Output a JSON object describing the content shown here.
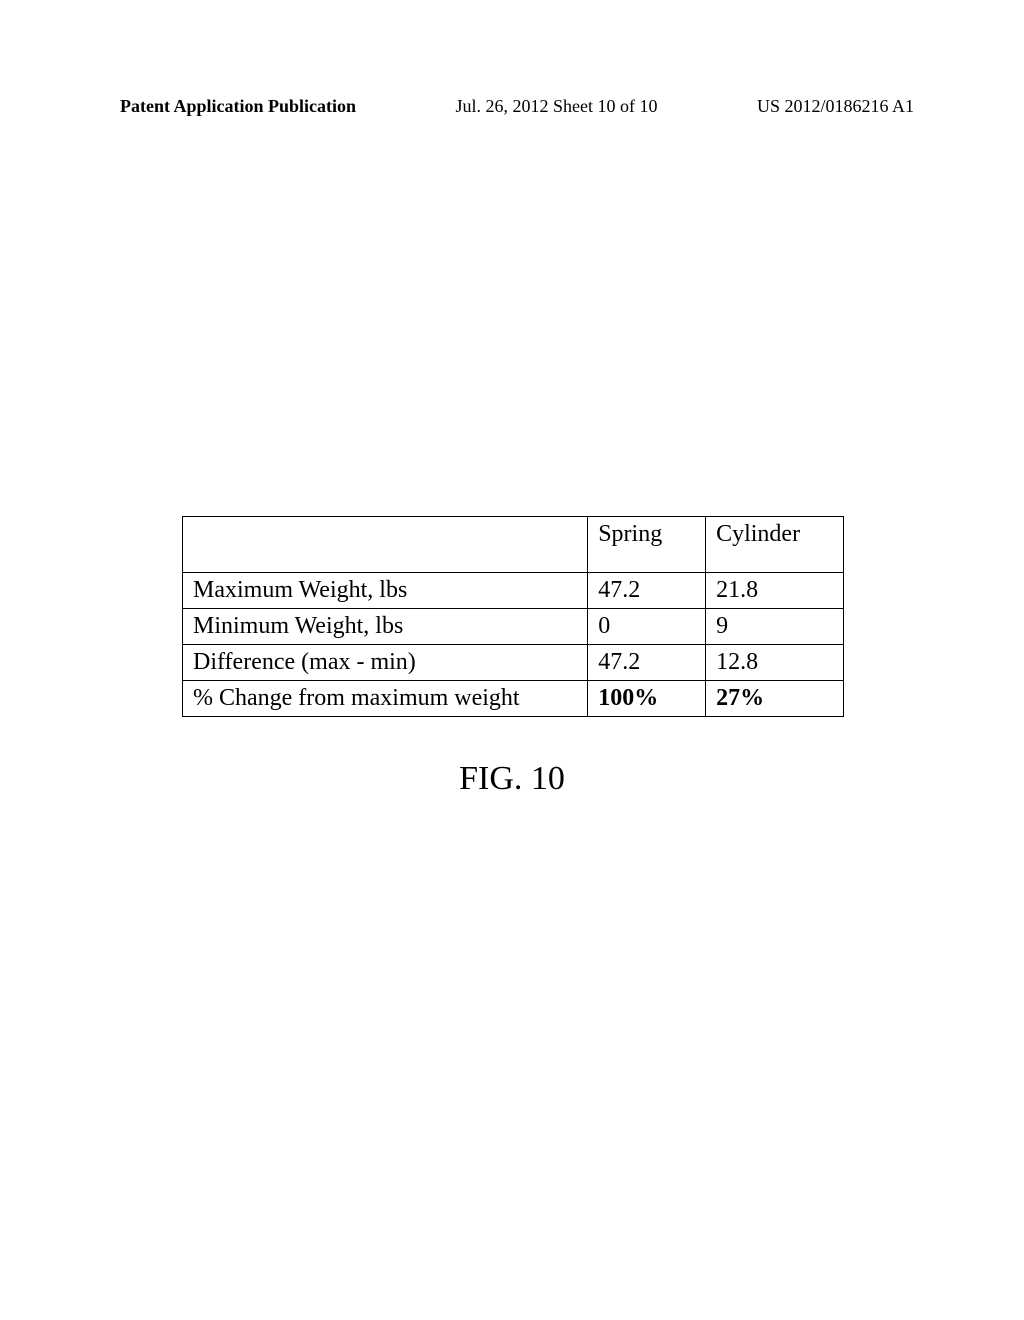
{
  "header": {
    "left": "Patent Application Publication",
    "center": "Jul. 26, 2012   Sheet 10 of 10",
    "right": "US 2012/0186216 A1"
  },
  "table": {
    "columns": [
      "",
      "Spring",
      "Cylinder"
    ],
    "rows": [
      {
        "label": "Maximum Weight, lbs",
        "spring": "47.2",
        "cylinder": "21.8",
        "bold": false
      },
      {
        "label": "Minimum Weight, lbs",
        "spring": "0",
        "cylinder": "9",
        "bold": false
      },
      {
        "label": "Difference (max - min)",
        "spring": "47.2",
        "cylinder": "12.8",
        "bold": false
      },
      {
        "label": "% Change from maximum  weight",
        "spring": "100%",
        "cylinder": "27%",
        "bold": true
      }
    ],
    "border_color": "#000000",
    "background_color": "#ffffff",
    "font_family": "Times New Roman",
    "header_fontsize": 24,
    "cell_fontsize": 24
  },
  "figure": {
    "label": "FIG. 10",
    "fontsize": 34
  }
}
